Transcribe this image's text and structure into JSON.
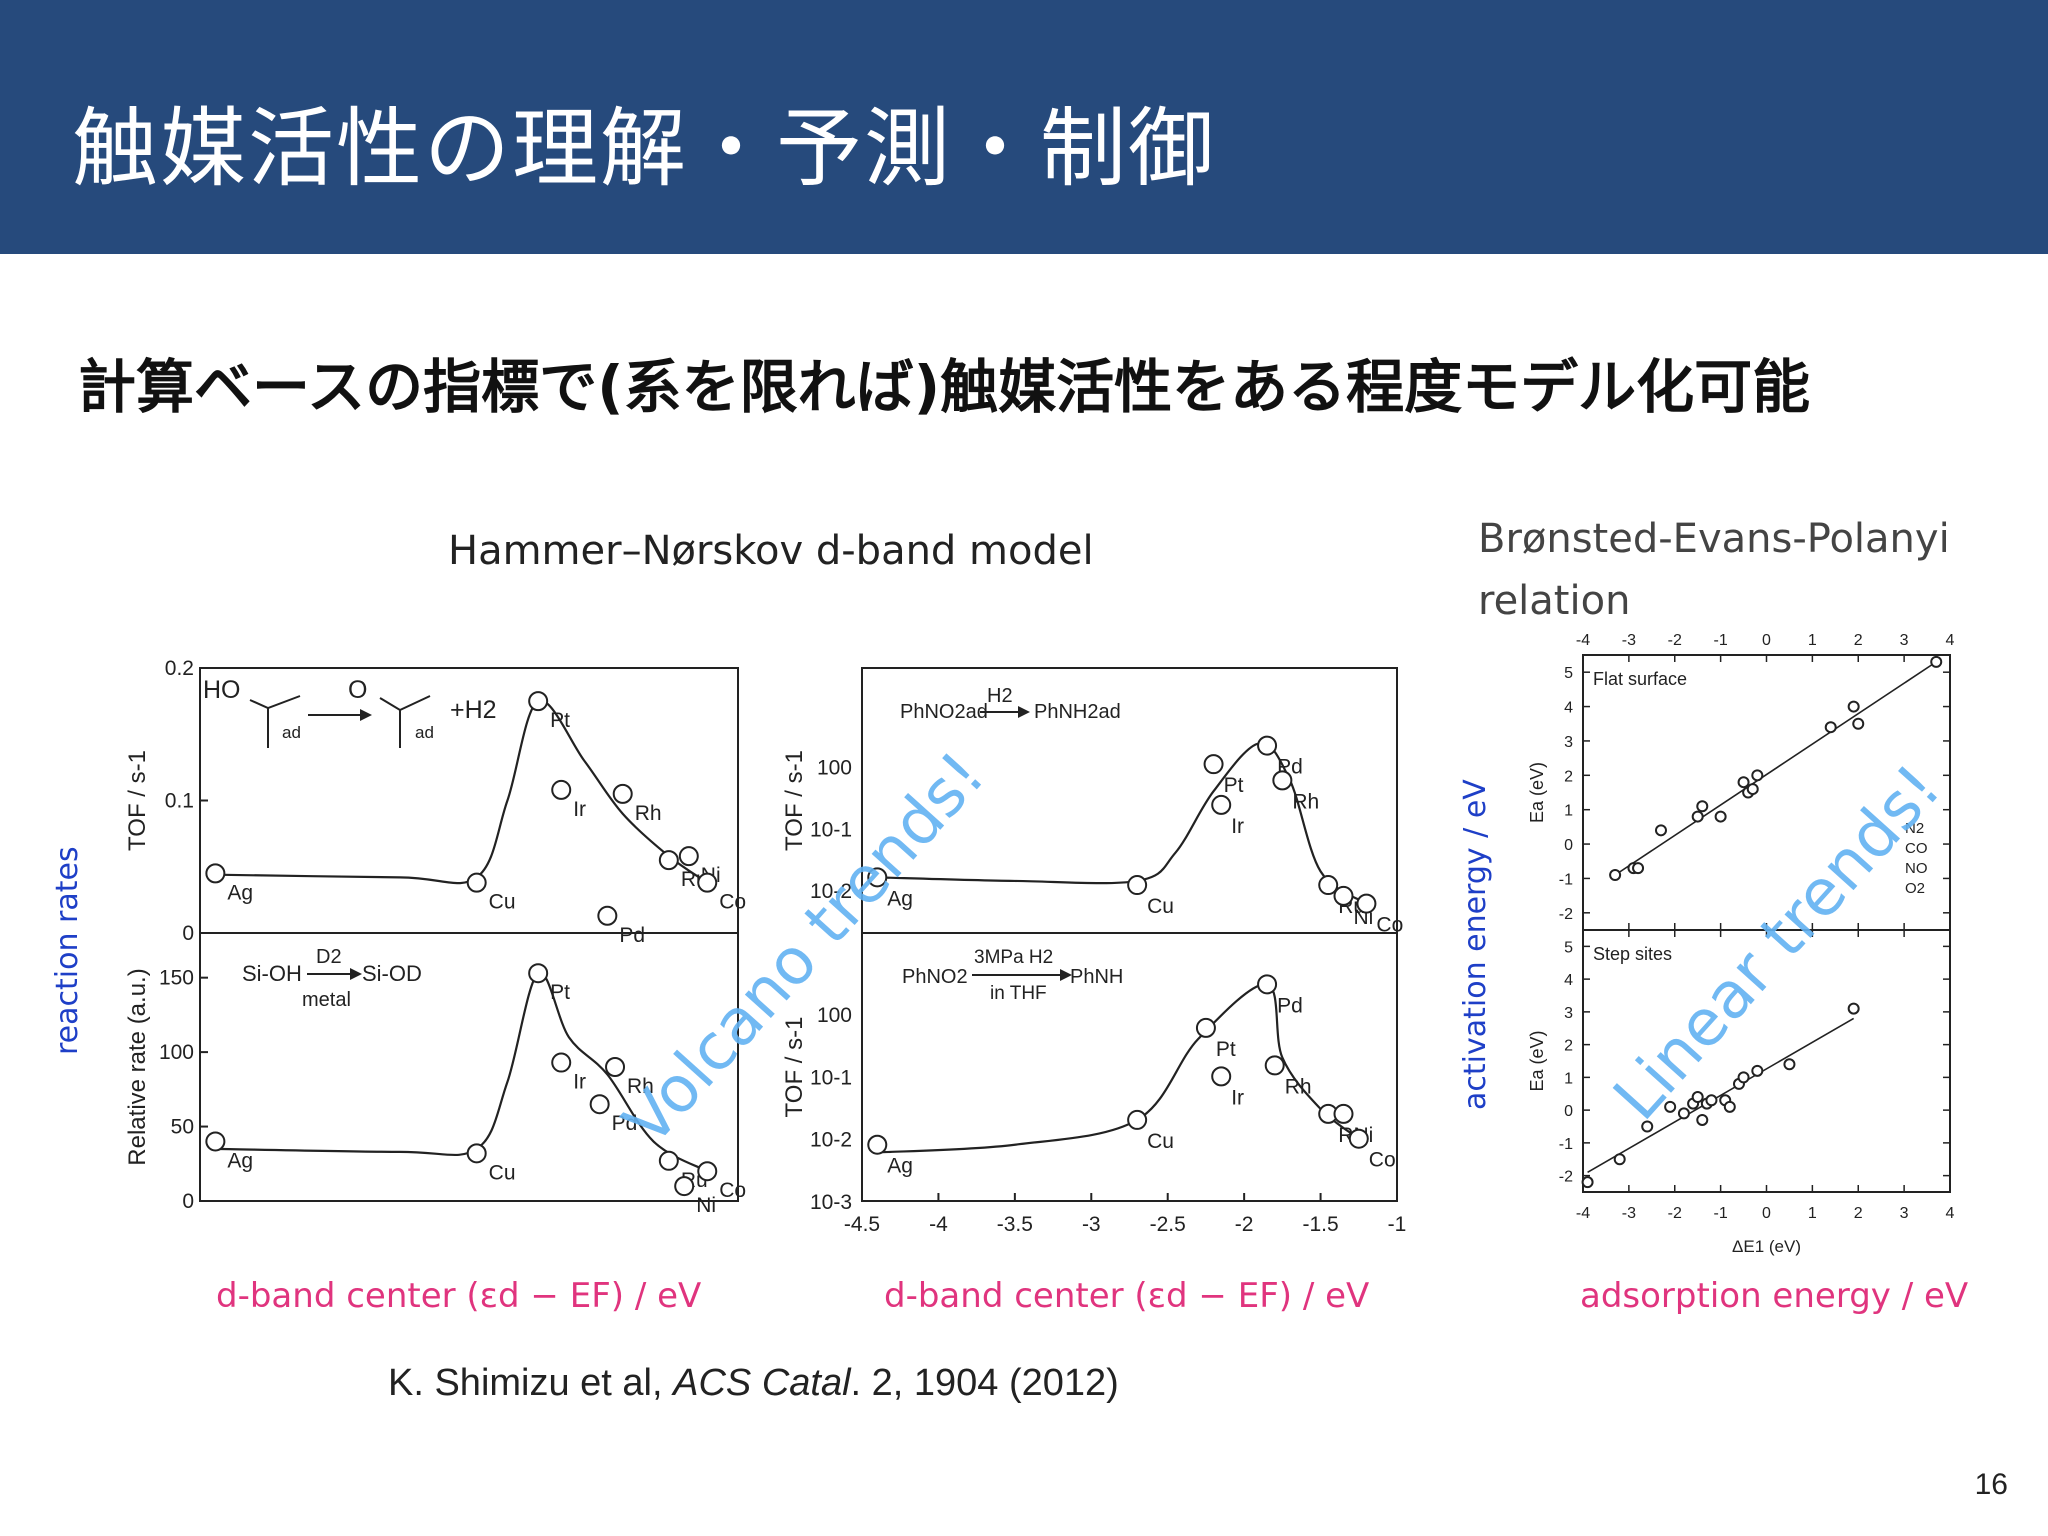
{
  "header": {
    "title": "触媒活性の理解・予測・制御"
  },
  "subtitle": "計算ベースの指標で(系を限れば)触媒活性をある程度モデル化可能",
  "labels": {
    "hn_model": "Hammer–Nørskov d-band model",
    "bep_line1": "Brønsted-Evans-Polanyi",
    "bep_line2": "relation",
    "reaction_rates": "reaction rates",
    "activation_energy": "activation energy  / eV",
    "dband_center_1": "d-band center (εd − EF) / eV",
    "dband_center_2": "d-band center (εd − EF) / eV",
    "adsorption_energy": "adsorption energy / eV",
    "volcano": "Volcano trends!",
    "linear": "Linear trends!"
  },
  "citation": {
    "authors": "K. Shimizu et al, ",
    "journal": "ACS Catal",
    "rest": ". 2, 1904 (2012)"
  },
  "page_number": "16",
  "colors": {
    "header_bg": "#264a7c",
    "pink": "#e0347e",
    "blue": "#1e3fc7",
    "light_blue": "#62b2f2"
  },
  "chart_data": [
    {
      "type": "scatter",
      "id": "left-top",
      "ylabel": "TOF / s-1",
      "ylim": [
        0,
        0.2
      ],
      "yticks": [
        "0",
        "0.1",
        "0.2"
      ],
      "reaction": {
        "reactant": "HO",
        "product": "O",
        "sub": "ad",
        "extra": "+H2"
      },
      "points": [
        {
          "label": "Ag",
          "x": -4.4,
          "y": 0.045
        },
        {
          "label": "Cu",
          "x": -2.7,
          "y": 0.038
        },
        {
          "label": "Pt",
          "x": -2.3,
          "y": 0.175
        },
        {
          "label": "Ir",
          "x": -2.15,
          "y": 0.108
        },
        {
          "label": "Pd",
          "x": -1.85,
          "y": 0.013
        },
        {
          "label": "Rh",
          "x": -1.75,
          "y": 0.105
        },
        {
          "label": "Ru",
          "x": -1.45,
          "y": 0.055
        },
        {
          "label": "Ni",
          "x": -1.32,
          "y": 0.058
        },
        {
          "label": "Co",
          "x": -1.2,
          "y": 0.038
        }
      ]
    },
    {
      "type": "scatter",
      "id": "left-bottom",
      "ylabel": "Relative rate (a.u.)",
      "ylim": [
        0,
        180
      ],
      "yticks": [
        "0",
        "50",
        "100",
        "150"
      ],
      "reaction": {
        "reactant": "Si-OH",
        "reagent": "D2",
        "product": "Si-OD",
        "catalyst": "metal"
      },
      "points": [
        {
          "label": "Ag",
          "x": -4.4,
          "y": 40
        },
        {
          "label": "Cu",
          "x": -2.7,
          "y": 32
        },
        {
          "label": "Pt",
          "x": -2.3,
          "y": 153
        },
        {
          "label": "Ir",
          "x": -2.15,
          "y": 93
        },
        {
          "label": "Pd",
          "x": -1.9,
          "y": 65
        },
        {
          "label": "Rh",
          "x": -1.8,
          "y": 90
        },
        {
          "label": "Ru",
          "x": -1.45,
          "y": 27
        },
        {
          "label": "Ni",
          "x": -1.35,
          "y": 10
        },
        {
          "label": "Co",
          "x": -1.2,
          "y": 20
        }
      ]
    },
    {
      "type": "scatter",
      "id": "mid-top",
      "ylabel": "TOF / s-1",
      "yscale": "log",
      "reaction": {
        "reactant": "PhNO2ad",
        "reagent": "H2",
        "product": "PhNH2ad"
      },
      "points": [
        {
          "label": "Ag",
          "x": -4.4,
          "y": 0.008
        },
        {
          "label": "Cu",
          "x": -2.7,
          "y": 0.006
        },
        {
          "label": "Pt",
          "x": -2.2,
          "y": 0.55
        },
        {
          "label": "Ir",
          "x": -2.15,
          "y": 0.12
        },
        {
          "label": "Pd",
          "x": -1.85,
          "y": 1.1
        },
        {
          "label": "Rh",
          "x": -1.75,
          "y": 0.3
        },
        {
          "label": "Ru",
          "x": -1.45,
          "y": 0.006
        },
        {
          "label": "Ni",
          "x": -1.35,
          "y": 0.004
        },
        {
          "label": "Co",
          "x": -1.2,
          "y": 0.003
        }
      ]
    },
    {
      "type": "scatter",
      "id": "mid-bottom",
      "ylabel": "TOF / s-1",
      "yscale": "log",
      "xlim": [
        -4.5,
        -1
      ],
      "xticks": [
        "-4.5",
        "-4",
        "-3.5",
        "-3",
        "-2.5",
        "-2",
        "-1.5",
        "-1"
      ],
      "yticks": [
        "10-3",
        "10-2",
        "10-1",
        "100"
      ],
      "reaction": {
        "reactant": "PhNO2",
        "reagent": "3MPa H2",
        "solvent": "in THF",
        "product": "PhNH"
      },
      "points": [
        {
          "label": "Ag",
          "x": -4.4,
          "y": 0.008
        },
        {
          "label": "Cu",
          "x": -2.7,
          "y": 0.02
        },
        {
          "label": "Pt",
          "x": -2.25,
          "y": 0.6
        },
        {
          "label": "Ir",
          "x": -2.15,
          "y": 0.1
        },
        {
          "label": "Pd",
          "x": -1.85,
          "y": 3
        },
        {
          "label": "Rh",
          "x": -1.8,
          "y": 0.15
        },
        {
          "label": "Ru",
          "x": -1.45,
          "y": 0.025
        },
        {
          "label": "Ni",
          "x": -1.35,
          "y": 0.025
        },
        {
          "label": "Co",
          "x": -1.25,
          "y": 0.01
        }
      ]
    },
    {
      "type": "scatter",
      "id": "right-top",
      "title": "Flat surface",
      "ylabel": "Ea (eV)",
      "xlim": [
        -4,
        4
      ],
      "ylim": [
        -2.5,
        5.5
      ],
      "xticks": [
        "-4",
        "-3",
        "-2",
        "-1",
        "0",
        "1",
        "2",
        "3",
        "4"
      ],
      "yticks": [
        "-2",
        "-1",
        "0",
        "1",
        "2",
        "3",
        "4",
        "5"
      ],
      "legend": [
        "N2",
        "CO",
        "NO",
        "O2"
      ],
      "points": [
        {
          "x": -3.3,
          "y": -0.9
        },
        {
          "x": -2.9,
          "y": -0.7
        },
        {
          "x": -2.8,
          "y": -0.7
        },
        {
          "x": -2.3,
          "y": 0.4
        },
        {
          "x": -1.5,
          "y": 0.8
        },
        {
          "x": -1.4,
          "y": 1.1
        },
        {
          "x": -1.0,
          "y": 0.8
        },
        {
          "x": -0.5,
          "y": 1.8
        },
        {
          "x": -0.4,
          "y": 1.5
        },
        {
          "x": -0.3,
          "y": 1.6
        },
        {
          "x": -0.2,
          "y": 2.0
        },
        {
          "x": 1.4,
          "y": 3.4
        },
        {
          "x": 1.9,
          "y": 4.0
        },
        {
          "x": 2.0,
          "y": 3.5
        },
        {
          "x": 3.7,
          "y": 5.3
        }
      ],
      "fit": [
        [
          -3.3,
          -0.9
        ],
        [
          3.7,
          5.3
        ]
      ]
    },
    {
      "type": "scatter",
      "id": "right-bottom",
      "title": "Step sites",
      "ylabel": "Ea (eV)",
      "xlabel": "ΔE1 (eV)",
      "xlim": [
        -4,
        4
      ],
      "ylim": [
        -2.5,
        5.5
      ],
      "xticks": [
        "-4",
        "-3",
        "-2",
        "-1",
        "0",
        "1",
        "2",
        "3",
        "4"
      ],
      "yticks": [
        "-2",
        "-1",
        "0",
        "1",
        "2",
        "3",
        "4",
        "5"
      ],
      "points": [
        {
          "x": -3.9,
          "y": -2.2
        },
        {
          "x": -3.2,
          "y": -1.5
        },
        {
          "x": -2.6,
          "y": -0.5
        },
        {
          "x": -2.1,
          "y": 0.1
        },
        {
          "x": -1.8,
          "y": -0.1
        },
        {
          "x": -1.6,
          "y": 0.2
        },
        {
          "x": -1.5,
          "y": 0.4
        },
        {
          "x": -1.4,
          "y": -0.3
        },
        {
          "x": -1.3,
          "y": 0.2
        },
        {
          "x": -1.2,
          "y": 0.3
        },
        {
          "x": -0.9,
          "y": 0.3
        },
        {
          "x": -0.8,
          "y": 0.1
        },
        {
          "x": -0.6,
          "y": 0.8
        },
        {
          "x": -0.5,
          "y": 1.0
        },
        {
          "x": -0.2,
          "y": 1.2
        },
        {
          "x": 0.5,
          "y": 1.4
        },
        {
          "x": 1.9,
          "y": 3.1
        }
      ],
      "fit": [
        [
          -3.9,
          -1.9
        ],
        [
          1.9,
          2.8
        ]
      ]
    }
  ]
}
